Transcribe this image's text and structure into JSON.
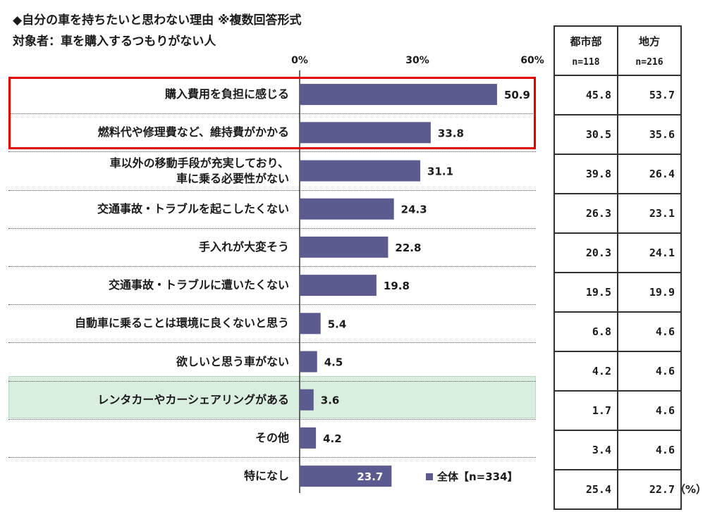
{
  "header": {
    "title": "◆自分の車を持ちたいと思わない理由 ※複数回答形式",
    "subtitle": "対象者：車を購入するつもりがない人"
  },
  "colors": {
    "bar": "#5b5b8f",
    "highlight_red": "#e00000",
    "highlight_green": "#d9eedf"
  },
  "chart_data": {
    "type": "bar",
    "orientation": "horizontal",
    "xlim": [
      0,
      60
    ],
    "tick_labels": [
      "0%",
      "30%",
      "60%"
    ],
    "categories": [
      [
        "購入費用を負担に感じる"
      ],
      [
        "燃料代や修理費など、維持費がかかる"
      ],
      [
        "車以外の移動手段が充実しており、",
        "車に乗る必要性がない"
      ],
      [
        "交通事故・トラブルを起こしたくない"
      ],
      [
        "手入れが大変そう"
      ],
      [
        "交通事故・トラブルに遭いたくない"
      ],
      [
        "自動車に乗ることは環境に良くないと思う"
      ],
      [
        "欲しいと思う車がない"
      ],
      [
        "レンタカーやカーシェアリングがある"
      ],
      [
        "その他"
      ],
      [
        "特になし"
      ]
    ],
    "series": [
      {
        "name": "全体【n=334】",
        "values": [
          50.9,
          33.8,
          31.1,
          24.3,
          22.8,
          19.8,
          5.4,
          4.5,
          3.6,
          4.2,
          23.7
        ]
      }
    ],
    "data_labels": [
      "50.9",
      "33.8",
      "31.1",
      "24.3",
      "22.8",
      "19.8",
      "5.4",
      "4.5",
      "3.6",
      "4.2",
      "23.7"
    ],
    "legend": "bottom-right"
  },
  "side_table": {
    "headers": [
      {
        "label": "都市部",
        "n": "n=118"
      },
      {
        "label": "地方",
        "n": "n=216"
      }
    ],
    "rows": [
      [
        "45.8",
        "53.7"
      ],
      [
        "30.5",
        "35.6"
      ],
      [
        "39.8",
        "26.4"
      ],
      [
        "26.3",
        "23.1"
      ],
      [
        "20.3",
        "24.1"
      ],
      [
        "19.5",
        "19.9"
      ],
      [
        "6.8",
        "4.6"
      ],
      [
        "4.2",
        "4.6"
      ],
      [
        "1.7",
        "4.6"
      ],
      [
        "3.4",
        "4.6"
      ],
      [
        "25.4",
        "22.7"
      ]
    ]
  },
  "unit_label": "（%）",
  "legend_label": "全体【n=334】"
}
